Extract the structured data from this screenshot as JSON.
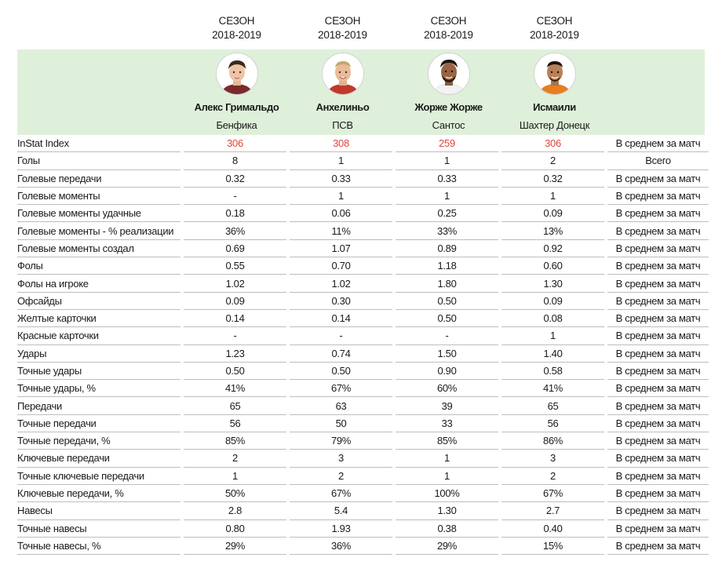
{
  "seasons": [
    {
      "line1": "СЕЗОН",
      "line2": "2018-2019"
    },
    {
      "line1": "СЕЗОН",
      "line2": "2018-2019"
    },
    {
      "line1": "СЕЗОН",
      "line2": "2018-2019"
    },
    {
      "line1": "СЕЗОН",
      "line2": "2018-2019"
    }
  ],
  "players": [
    {
      "name": "Алекс Гримальдо",
      "club": "Бенфика"
    },
    {
      "name": "Анхелиньо",
      "club": "ПСВ"
    },
    {
      "name": "Жорже Жорже",
      "club": "Сантос"
    },
    {
      "name": "Исмаили",
      "club": "Шахтер Донецк"
    }
  ],
  "colors": {
    "header_band": "#dff0da",
    "index_highlight": "#e0453a",
    "row_border": "#bdbdbd"
  },
  "rows": [
    {
      "label": "InStat Index",
      "values": [
        "306",
        "308",
        "259",
        "306"
      ],
      "mode": "В среднем за матч"
    },
    {
      "label": "Голы",
      "values": [
        "8",
        "1",
        "1",
        "2"
      ],
      "mode": "Всего"
    },
    {
      "label": "Голевые передачи",
      "values": [
        "0.32",
        "0.33",
        "0.33",
        "0.32"
      ],
      "mode": "В среднем за матч"
    },
    {
      "label": "Голевые моменты",
      "values": [
        "-",
        "1",
        "1",
        "1"
      ],
      "mode": "В среднем за матч"
    },
    {
      "label": "Голевые моменты удачные",
      "values": [
        "0.18",
        "0.06",
        "0.25",
        "0.09"
      ],
      "mode": "В среднем за матч"
    },
    {
      "label": "Голевые моменты - % реализации",
      "values": [
        "36%",
        "11%",
        "33%",
        "13%"
      ],
      "mode": "В среднем за матч"
    },
    {
      "label": "Голевые моменты создал",
      "values": [
        "0.69",
        "1.07",
        "0.89",
        "0.92"
      ],
      "mode": "В среднем за матч"
    },
    {
      "label": "Фолы",
      "values": [
        "0.55",
        "0.70",
        "1.18",
        "0.60"
      ],
      "mode": "В среднем за матч"
    },
    {
      "label": "Фолы на игроке",
      "values": [
        "1.02",
        "1.02",
        "1.80",
        "1.30"
      ],
      "mode": "В среднем за матч"
    },
    {
      "label": "Офсайды",
      "values": [
        "0.09",
        "0.30",
        "0.50",
        "0.09"
      ],
      "mode": "В среднем за матч"
    },
    {
      "label": "Желтые карточки",
      "values": [
        "0.14",
        "0.14",
        "0.50",
        "0.08"
      ],
      "mode": "В среднем за матч"
    },
    {
      "label": "Красные карточки",
      "values": [
        "-",
        "-",
        "-",
        "1"
      ],
      "mode": "В среднем за матч"
    },
    {
      "label": "Удары",
      "values": [
        "1.23",
        "0.74",
        "1.50",
        "1.40"
      ],
      "mode": "В среднем за матч"
    },
    {
      "label": "Точные удары",
      "values": [
        "0.50",
        "0.50",
        "0.90",
        "0.58"
      ],
      "mode": "В среднем за матч"
    },
    {
      "label": "Точные удары, %",
      "values": [
        "41%",
        "67%",
        "60%",
        "41%"
      ],
      "mode": "В среднем за матч"
    },
    {
      "label": "Передачи",
      "values": [
        "65",
        "63",
        "39",
        "65"
      ],
      "mode": "В среднем за матч"
    },
    {
      "label": "Точные передачи",
      "values": [
        "56",
        "50",
        "33",
        "56"
      ],
      "mode": "В среднем за матч"
    },
    {
      "label": "Точные передачи, %",
      "values": [
        "85%",
        "79%",
        "85%",
        "86%"
      ],
      "mode": "В среднем за матч"
    },
    {
      "label": "Ключевые передачи",
      "values": [
        "2",
        "3",
        "1",
        "3"
      ],
      "mode": "В среднем за матч"
    },
    {
      "label": "Точные ключевые передачи",
      "values": [
        "1",
        "2",
        "1",
        "2"
      ],
      "mode": "В среднем за матч"
    },
    {
      "label": "Ключевые передачи, %",
      "values": [
        "50%",
        "67%",
        "100%",
        "67%"
      ],
      "mode": "В среднем за матч"
    },
    {
      "label": "Навесы",
      "values": [
        "2.8",
        "5.4",
        "1.30",
        "2.7"
      ],
      "mode": "В среднем за матч"
    },
    {
      "label": "Точные навесы",
      "values": [
        "0.80",
        "1.93",
        "0.38",
        "0.40"
      ],
      "mode": "В среднем за матч"
    },
    {
      "label": "Точные навесы, %",
      "values": [
        "29%",
        "36%",
        "29%",
        "15%"
      ],
      "mode": "В среднем за матч"
    }
  ]
}
